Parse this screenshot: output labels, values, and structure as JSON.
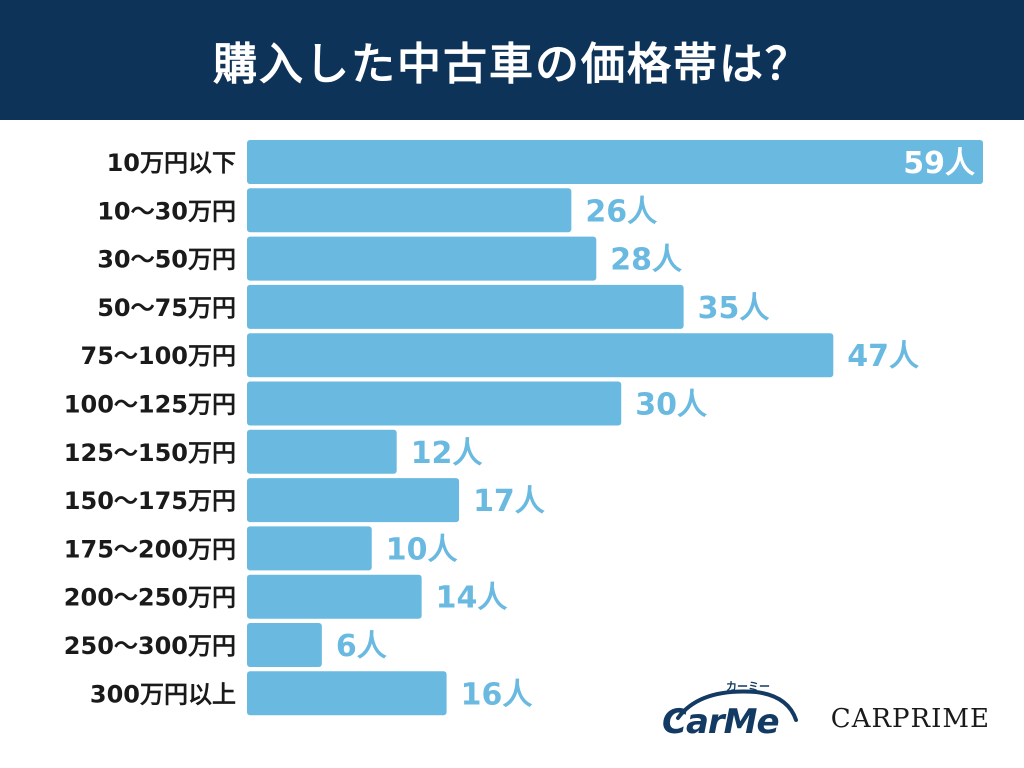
{
  "header": {
    "title": "購入した中古車の価格帯は？"
  },
  "logos": {
    "carme_text": "CarMe",
    "carme_kana": "カーミー",
    "carprime_text": "CARPRIME"
  },
  "colors": {
    "header_bg": "#0e3358",
    "bar": "#6ab9e1",
    "value_text": "#6ab9e1",
    "value_text_inside": "#ffffff"
  },
  "chart_data": {
    "type": "bar",
    "orientation": "horizontal",
    "title": "購入した中古車の価格帯は？",
    "value_suffix": "人",
    "xlim": [
      0,
      59
    ],
    "grid": false,
    "categories": [
      "10万円以下",
      "10～30万円",
      "30～50万円",
      "50～75万円",
      "75～100万円",
      "100～125万円",
      "125～150万円",
      "150～175万円",
      "175～200万円",
      "200～250万円",
      "250～300万円",
      "300万円以上"
    ],
    "values": [
      59,
      26,
      28,
      35,
      47,
      30,
      12,
      17,
      10,
      14,
      6,
      16
    ],
    "value_labels": [
      "59人",
      "26人",
      "28人",
      "35人",
      "47人",
      "30人",
      "12人",
      "17人",
      "10人",
      "14人",
      "6人",
      "16人"
    ]
  }
}
